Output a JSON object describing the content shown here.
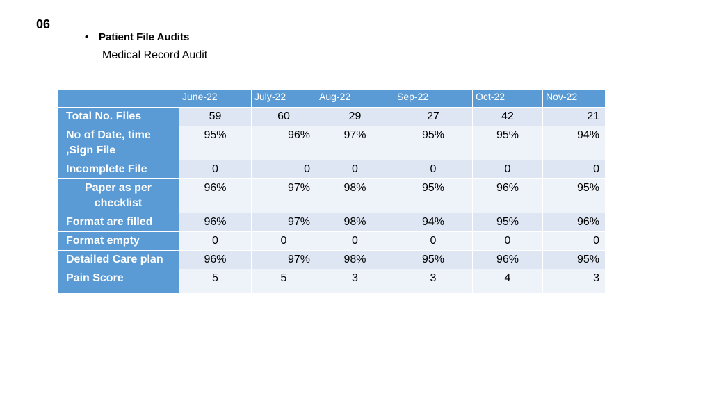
{
  "slide_number": "06",
  "bullet_title": "Patient File Audits",
  "subtitle": "Medical Record Audit",
  "table": {
    "columns": [
      "June-22",
      "July-22",
      "Aug-22",
      "Sep-22",
      "Oct-22",
      "Nov-22"
    ],
    "rows": [
      {
        "label": "Total No. Files",
        "values": [
          "59",
          "60",
          "29",
          "27",
          "42",
          "21"
        ]
      },
      {
        "label": "No of Date, time ,Sign File",
        "values": [
          "95%",
          "96%",
          "97%",
          "95%",
          "95%",
          "94%"
        ]
      },
      {
        "label": "Incomplete File",
        "values": [
          "0",
          "0",
          "0",
          "0",
          "0",
          "0"
        ]
      },
      {
        "label": "Paper as per checklist",
        "values": [
          "96%",
          "97%",
          "98%",
          "95%",
          "96%",
          "95%"
        ]
      },
      {
        "label": "Format are filled",
        "values": [
          "96%",
          "97%",
          "98%",
          "94%",
          "95%",
          "96%"
        ]
      },
      {
        "label": "Format empty",
        "values": [
          "0",
          "0",
          "0",
          "0",
          "0",
          "0"
        ]
      },
      {
        "label": "Detailed Care plan",
        "values": [
          "96%",
          "97%",
          "98%",
          "95%",
          "96%",
          "95%"
        ]
      },
      {
        "label": "Pain Score",
        "values": [
          "5",
          "5",
          "3",
          "3",
          "4",
          "3"
        ]
      }
    ]
  }
}
